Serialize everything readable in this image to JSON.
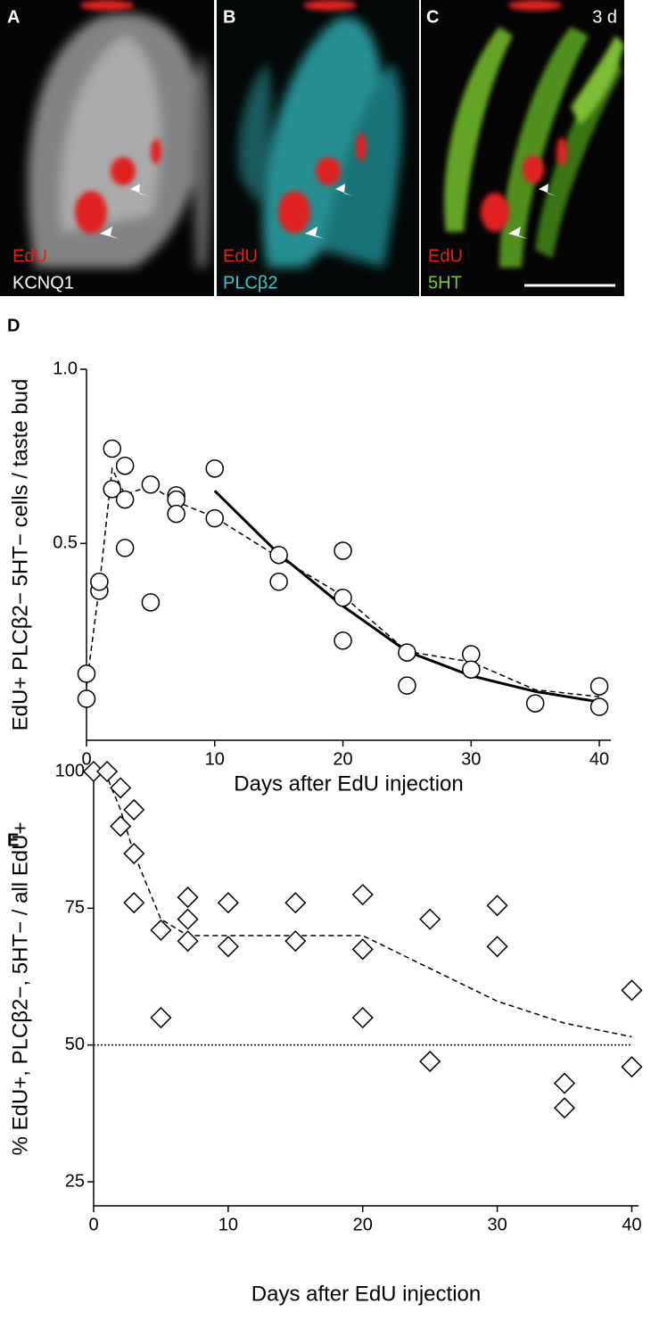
{
  "panels": [
    {
      "letter": "A",
      "labels": [
        "EdU",
        "KCNQ1"
      ]
    },
    {
      "letter": "B",
      "labels": [
        "EdU",
        "PLCβ2"
      ]
    },
    {
      "letter": "C",
      "time": "3 d",
      "labels": [
        "EdU",
        "5HT"
      ]
    }
  ],
  "chart_data": [
    {
      "type": "scatter",
      "panel": "D",
      "marker": "circle",
      "color": "#000000",
      "ylabel": "EdU+ PLCβ2− 5HT− cells / taste bud",
      "xlabel": "Days after EdU injection",
      "x": [
        0,
        0,
        1,
        1,
        2,
        2,
        3,
        3,
        3,
        5,
        5,
        7,
        7,
        7,
        10,
        10,
        15,
        15,
        20,
        20,
        20,
        25,
        25,
        30,
        30,
        35,
        40,
        40
      ],
      "values": [
        0.126,
        0.054,
        0.364,
        0.39,
        0.772,
        0.656,
        0.723,
        0.626,
        0.487,
        0.669,
        0.331,
        0.638,
        0.626,
        0.585,
        0.715,
        0.572,
        0.467,
        0.39,
        0.479,
        0.344,
        0.221,
        0.187,
        0.092,
        0.182,
        0.138,
        0.041,
        0.09,
        0.031
      ],
      "lines": [
        {
          "style": "dashed",
          "x": [
            0,
            1,
            2,
            3,
            5,
            7,
            10,
            15,
            20,
            25,
            30,
            35,
            40
          ],
          "values": [
            0.09,
            0.377,
            0.714,
            0.64,
            0.665,
            0.62,
            0.575,
            0.46,
            0.35,
            0.19,
            0.16,
            0.08,
            0.06
          ]
        },
        {
          "style": "solid",
          "x": [
            10,
            15,
            20,
            25,
            30,
            35,
            40
          ],
          "values": [
            0.651,
            0.47,
            0.32,
            0.19,
            0.12,
            0.075,
            0.045
          ]
        }
      ],
      "xlim": [
        0,
        40.9
      ],
      "ylim": [
        -0.065,
        1.0
      ],
      "xticks": [
        0,
        10,
        20,
        30,
        40
      ],
      "yticks": [
        0.5,
        {
          "value": 1,
          "label": "1.0"
        }
      ]
    },
    {
      "type": "scatter",
      "panel": "E",
      "marker": "diamond",
      "color": "#000000",
      "ylabel": "% EdU+, PLCβ2−, 5HT− / all EdU+",
      "xlabel": "Days after EdU injection",
      "x": [
        0,
        1,
        2,
        2,
        3,
        3,
        3,
        5,
        5,
        7,
        7,
        7,
        10,
        10,
        15,
        15,
        20,
        20,
        20,
        25,
        25,
        30,
        30,
        35,
        35,
        40,
        40
      ],
      "values": [
        100,
        100,
        97,
        90,
        93,
        85,
        76,
        71,
        55,
        77,
        73,
        69,
        76,
        68,
        76,
        69,
        77.5,
        67.5,
        55,
        73,
        47,
        75.5,
        68,
        43,
        38.5,
        60,
        46
      ],
      "lines": [
        {
          "style": "dashed",
          "x": [
            0,
            1,
            2,
            3,
            5,
            7,
            10,
            15,
            20,
            25,
            30,
            35,
            40
          ],
          "values": [
            100,
            99,
            93,
            85,
            73,
            70,
            70,
            70,
            70,
            64,
            58,
            54,
            51.5
          ]
        },
        {
          "style": "dotted",
          "x": [
            0,
            40
          ],
          "values": [
            50,
            50
          ]
        }
      ],
      "xlim": [
        0,
        40.5
      ],
      "ylim": [
        20.6,
        100
      ],
      "xticks": [
        0,
        10,
        20,
        30,
        40
      ],
      "yticks": [
        25,
        50,
        75,
        100
      ]
    }
  ]
}
